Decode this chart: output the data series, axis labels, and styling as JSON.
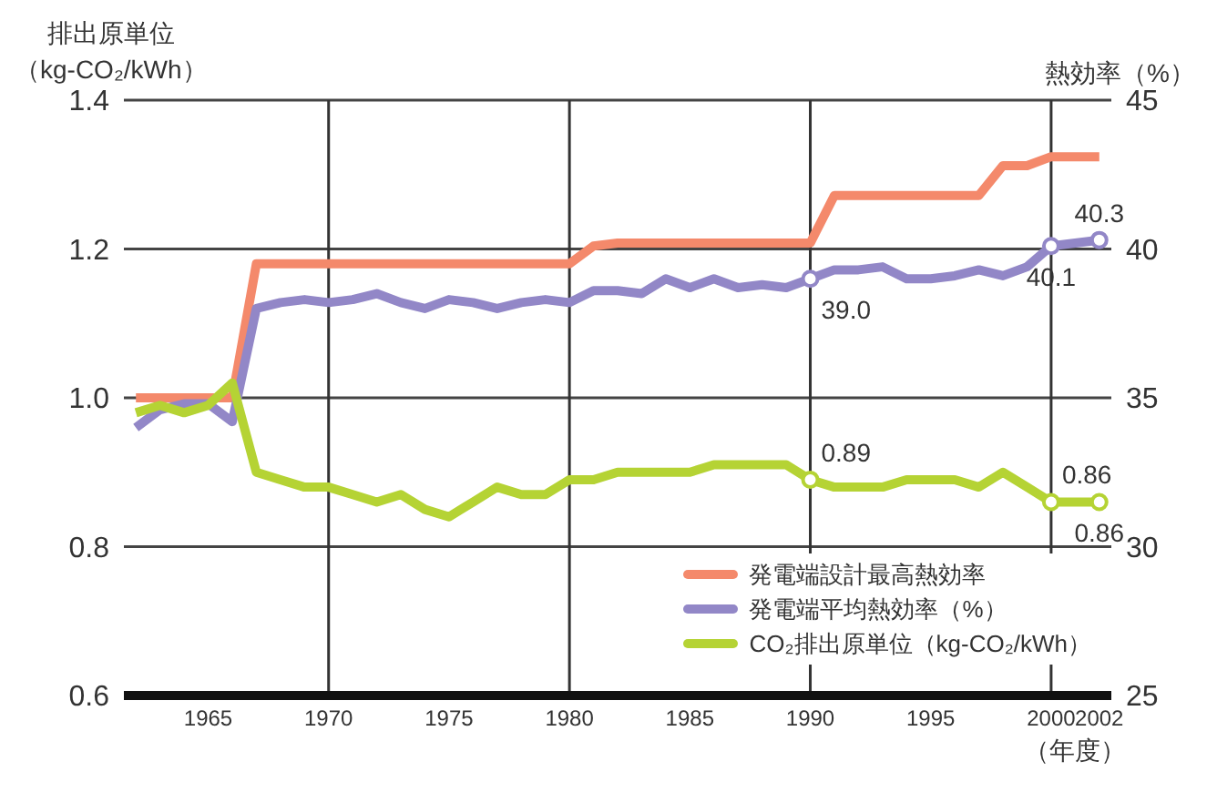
{
  "chart_data": {
    "type": "line",
    "ylabel": "排出原単位（kg-CO₂/kWh）",
    "y2label": "熱効率（%）",
    "xlabel": "（年度）",
    "x": [
      1962,
      1963,
      1964,
      1965,
      1966,
      1967,
      1968,
      1969,
      1970,
      1971,
      1972,
      1973,
      1974,
      1975,
      1976,
      1977,
      1978,
      1979,
      1980,
      1981,
      1982,
      1983,
      1984,
      1985,
      1986,
      1987,
      1988,
      1989,
      1990,
      1991,
      1992,
      1993,
      1994,
      1995,
      1996,
      1997,
      1998,
      1999,
      2000,
      2001,
      2002
    ],
    "xlim": [
      1961.5,
      2002.5
    ],
    "xticks": [
      1965,
      1970,
      1975,
      1980,
      1985,
      1990,
      1995,
      2000,
      2002
    ],
    "ylim": [
      0.6,
      1.4
    ],
    "yticks": [
      {
        "value": 0.6,
        "label": "0.6"
      },
      {
        "value": 0.8,
        "label": "0.8"
      },
      {
        "value": 1.0,
        "label": "1.0"
      },
      {
        "value": 1.2,
        "label": "1.2"
      },
      {
        "value": 1.4,
        "label": "1.4"
      }
    ],
    "y2lim": [
      25,
      45
    ],
    "y2ticks": [
      25,
      30,
      35,
      40,
      45
    ],
    "grid": "y",
    "legend": "bottom right",
    "marker": "none",
    "line_style": "solid",
    "ref_lines": [
      {
        "axis": "x",
        "value": 1970,
        "color": "#333333"
      },
      {
        "axis": "x",
        "value": 1980,
        "color": "#333333"
      },
      {
        "axis": "x",
        "value": 1990,
        "color": "#333333"
      },
      {
        "axis": "x",
        "value": 2000,
        "color": "#333333"
      }
    ],
    "series": [
      {
        "name": "発電端設計最高熱効率",
        "color": "#f4896b",
        "axis": "y2",
        "values": [
          35,
          35,
          35,
          35,
          35,
          39.5,
          39.5,
          39.5,
          39.5,
          39.5,
          39.5,
          39.5,
          39.5,
          39.5,
          39.5,
          39.5,
          39.5,
          39.5,
          39.5,
          40.1,
          40.2,
          40.2,
          40.2,
          40.2,
          40.2,
          40.2,
          40.2,
          40.2,
          40.2,
          41.8,
          41.8,
          41.8,
          41.8,
          41.8,
          41.8,
          41.8,
          42.8,
          42.8,
          43.1,
          43.1,
          43.1
        ]
      },
      {
        "name": "発電端平均熱効率（%）",
        "color": "#9287c7",
        "axis": "y2",
        "values": [
          34.0,
          34.6,
          34.8,
          34.8,
          34.2,
          38.0,
          38.2,
          38.3,
          38.2,
          38.3,
          38.5,
          38.2,
          38.0,
          38.3,
          38.2,
          38.0,
          38.2,
          38.3,
          38.2,
          38.6,
          38.6,
          38.5,
          39.0,
          38.7,
          39.0,
          38.7,
          38.8,
          38.7,
          39.0,
          39.3,
          39.3,
          39.4,
          39.0,
          39.0,
          39.1,
          39.3,
          39.1,
          39.4,
          40.1,
          40.2,
          40.3
        ],
        "value_labels": [
          null,
          null,
          null,
          null,
          null,
          null,
          null,
          null,
          null,
          null,
          null,
          null,
          null,
          null,
          null,
          null,
          null,
          null,
          null,
          null,
          null,
          null,
          null,
          null,
          null,
          null,
          null,
          null,
          "39.0",
          null,
          null,
          null,
          null,
          null,
          null,
          null,
          null,
          null,
          "40.1",
          null,
          "40.3"
        ]
      },
      {
        "name": "CO₂排出原単位（kg-CO₂/kWh）",
        "color": "#b5d334",
        "values": [
          0.98,
          0.99,
          0.98,
          0.99,
          1.02,
          0.9,
          0.89,
          0.88,
          0.88,
          0.87,
          0.86,
          0.87,
          0.85,
          0.84,
          0.86,
          0.88,
          0.87,
          0.87,
          0.89,
          0.89,
          0.9,
          0.9,
          0.9,
          0.9,
          0.91,
          0.91,
          0.91,
          0.91,
          0.89,
          0.88,
          0.88,
          0.88,
          0.89,
          0.89,
          0.89,
          0.88,
          0.9,
          0.88,
          0.86,
          0.86,
          0.86
        ],
        "value_labels": [
          null,
          null,
          null,
          null,
          null,
          null,
          null,
          null,
          null,
          null,
          null,
          null,
          null,
          null,
          null,
          null,
          null,
          null,
          null,
          null,
          null,
          null,
          null,
          null,
          null,
          null,
          null,
          null,
          "0.89",
          null,
          null,
          null,
          null,
          null,
          null,
          null,
          null,
          null,
          "0.86",
          null,
          "0.86"
        ]
      }
    ]
  }
}
